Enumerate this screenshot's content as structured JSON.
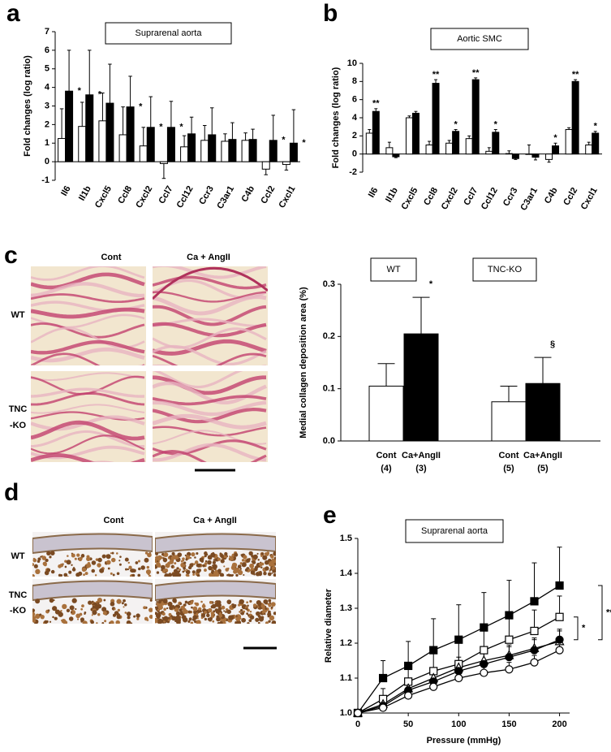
{
  "panel_labels": [
    "a",
    "b",
    "c",
    "d",
    "e"
  ],
  "histology": [
    {
      "columns": [
        "Cont",
        "Ca + AngII"
      ],
      "rows": [
        [
          "WT"
        ],
        [
          "TNC",
          "-KO"
        ]
      ]
    },
    {
      "columns": [
        "Cont",
        "Ca + AngII"
      ],
      "rows": [
        [
          "WT"
        ],
        [
          "TNC",
          "-KO"
        ]
      ]
    }
  ],
  "chart_data": [
    {
      "type": "bar",
      "title": "Suprarenal aorta",
      "y_label": "Fold changes (log ratio)",
      "categories": [
        "Il6",
        "Il1b",
        "Cxcl5",
        "Ccl8",
        "Cxcl2",
        "Ccl7",
        "Ccl12",
        "Ccr3",
        "C3ar1",
        "C4b",
        "Ccl2",
        "Cxcl1"
      ],
      "series": [
        {
          "color": "#ffffff",
          "values": [
            1.25,
            1.9,
            2.2,
            1.45,
            0.85,
            -0.1,
            0.8,
            1.15,
            1.1,
            1.15,
            -0.4,
            -0.15
          ],
          "errors": [
            1.6,
            1.3,
            1.5,
            1.5,
            1.0,
            0.8,
            0.6,
            0.8,
            0.4,
            0.4,
            0.3,
            0.3
          ]
        },
        {
          "color": "#000000",
          "values": [
            3.8,
            3.6,
            3.15,
            2.95,
            1.85,
            1.85,
            1.5,
            1.45,
            1.2,
            1.2,
            1.15,
            1.0
          ],
          "errors": [
            2.2,
            2.4,
            2.1,
            1.65,
            1.65,
            1.4,
            0.9,
            1.45,
            0.9,
            0.55,
            1.35,
            1.8
          ],
          "significance": [
            "*",
            "*",
            null,
            "*",
            "*",
            "*",
            null,
            null,
            null,
            null,
            "*",
            "*"
          ]
        }
      ],
      "ylim": [
        -1,
        7
      ],
      "yticks": [
        -1,
        0,
        1,
        2,
        3,
        4,
        5,
        6,
        7
      ]
    },
    {
      "type": "bar",
      "title": "Aortic SMC",
      "y_label": "Fold changes (log ratio)",
      "categories": [
        "Il6",
        "Il1b",
        "Cxcl5",
        "Ccl8",
        "Cxcl2",
        "Ccl7",
        "Ccl12",
        "Ccr3",
        "C3ar1",
        "C4b",
        "Ccl2",
        "Cxcl1"
      ],
      "series": [
        {
          "color": "#ffffff",
          "values": [
            2.3,
            0.7,
            4.0,
            1.0,
            1.2,
            1.7,
            0.3,
            0.05,
            0,
            -0.6,
            2.7,
            1.0
          ],
          "errors": [
            0.4,
            0.6,
            0.2,
            0.4,
            0.3,
            0.3,
            0.4,
            0.3,
            1.0,
            0.3,
            0.2,
            0.3
          ]
        },
        {
          "color": "#000000",
          "values": [
            4.7,
            -0.3,
            4.5,
            7.8,
            2.5,
            8.2,
            2.4,
            -0.5,
            -0.35,
            0.9,
            8.0,
            2.3
          ],
          "errors": [
            0.3,
            0.1,
            0.2,
            0.4,
            0.2,
            0.2,
            0.3,
            0.1,
            0.3,
            0.3,
            0.2,
            0.2
          ],
          "significance": [
            "**",
            null,
            null,
            "**",
            "*",
            "**",
            "*",
            null,
            null,
            "*",
            "**",
            "*"
          ]
        }
      ],
      "ylim": [
        -2,
        10
      ],
      "yticks": [
        -2,
        0,
        2,
        4,
        6,
        8,
        10
      ]
    },
    {
      "type": "bar",
      "y_label": "Medial collagen deposition area (%)",
      "groups": [
        "WT",
        "TNC-KO"
      ],
      "categories": [
        "Cont",
        "Ca+AngII",
        "Cont",
        "Ca+AngII"
      ],
      "n_labels": [
        "(4)",
        "(3)",
        "(5)",
        "(5)"
      ],
      "values": [
        0.105,
        0.205,
        0.075,
        0.11
      ],
      "errors": [
        0.043,
        0.07,
        0.03,
        0.05
      ],
      "colors": [
        "#ffffff",
        "#000000",
        "#ffffff",
        "#000000"
      ],
      "significance": [
        null,
        "*",
        null,
        "§"
      ],
      "ylim": [
        0,
        0.3
      ],
      "yticks": [
        {
          "value": 0,
          "label": "0.0"
        },
        0.1,
        0.2,
        0.3
      ]
    },
    {
      "type": "line",
      "title": "Suprarenal aorta",
      "x_label": "Pressure (mmHg)",
      "y_label": "Relative diameter",
      "x": [
        0,
        25,
        50,
        75,
        100,
        125,
        150,
        175,
        200
      ],
      "series": [
        {
          "marker": "square",
          "marker_fill": "#000000",
          "color": "#000000",
          "values": [
            1.0,
            1.1,
            1.135,
            1.18,
            1.21,
            1.245,
            1.28,
            1.32,
            1.365
          ],
          "errors": [
            0,
            0.05,
            0.07,
            0.09,
            0.1,
            0.1,
            0.1,
            0.11,
            0.11
          ]
        },
        {
          "marker": "square",
          "marker_fill": "#ffffff",
          "color": "#000000",
          "values": [
            1.0,
            1.04,
            1.09,
            1.12,
            1.14,
            1.18,
            1.21,
            1.235,
            1.275
          ],
          "errors": [
            0,
            0.03,
            0.04,
            0.05,
            0.06,
            0.06,
            0.06,
            0.06,
            0.06
          ]
        },
        {
          "marker": "triangle",
          "marker_fill": "#ffffff",
          "color": "#000000",
          "values": [
            1.0,
            1.025,
            1.07,
            1.1,
            1.13,
            1.15,
            1.165,
            1.185,
            1.205
          ],
          "errors": [
            0,
            0.02,
            0.03,
            0.03,
            0.03,
            0.03,
            0.03,
            0.03,
            0.03
          ]
        },
        {
          "marker": "circle",
          "marker_fill": "#000000",
          "color": "#000000",
          "values": [
            1.0,
            1.02,
            1.065,
            1.09,
            1.12,
            1.14,
            1.16,
            1.18,
            1.21
          ],
          "errors": [
            0,
            0.02,
            0.02,
            0.03,
            0.03,
            0.03,
            0.03,
            0.03,
            0.03
          ]
        },
        {
          "marker": "circle",
          "marker_fill": "#ffffff",
          "color": "#000000",
          "values": [
            1.0,
            1.015,
            1.05,
            1.075,
            1.1,
            1.115,
            1.125,
            1.145,
            1.18
          ],
          "errors": [
            0,
            0.015,
            0.02,
            0.02,
            0.02,
            0.02,
            0.02,
            0.02,
            0.02
          ]
        }
      ],
      "annotations": [
        "*",
        "***"
      ],
      "xlim": [
        0,
        210
      ],
      "xticks": [
        0,
        50,
        100,
        150,
        200
      ],
      "ylim": [
        1.0,
        1.5
      ],
      "yticks": [
        {
          "value": 1.0,
          "label": "1.0"
        },
        1.1,
        1.2,
        1.3,
        1.4,
        {
          "value": 1.5,
          "label": "1.5"
        }
      ]
    }
  ]
}
